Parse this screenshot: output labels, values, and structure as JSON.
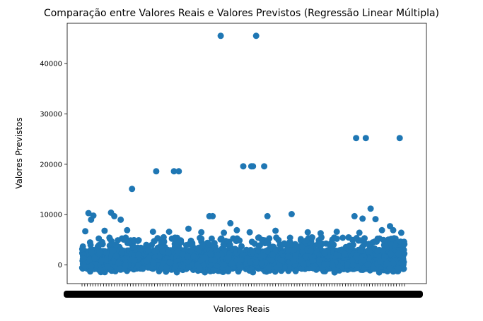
{
  "chart_data": {
    "type": "scatter",
    "title": "Comparação entre Valores Reais e Valores Previstos (Regressão Linear Múltipla)",
    "xlabel": "Valores Reais",
    "ylabel": "Valores Previstos",
    "ylim": [
      -3700,
      48000
    ],
    "y_ticks": [
      0,
      10000,
      20000,
      30000,
      40000
    ],
    "y_tick_labels": [
      "0",
      "10000",
      "20000",
      "30000",
      "40000"
    ],
    "grid": false,
    "legend": "none",
    "marker_color": "#1f77b4",
    "x_tick_note": "categorical x-axis with overlapping illegible tick labels",
    "x_range": [
      0,
      1
    ],
    "dense_band": {
      "y_min": -1500,
      "y_max": 5500
    },
    "points": [
      {
        "x": 0.43,
        "y": 45500
      },
      {
        "x": 0.54,
        "y": 45500
      },
      {
        "x": 0.85,
        "y": 25200
      },
      {
        "x": 0.88,
        "y": 25200
      },
      {
        "x": 0.985,
        "y": 25200
      },
      {
        "x": 0.23,
        "y": 18600
      },
      {
        "x": 0.285,
        "y": 18600
      },
      {
        "x": 0.3,
        "y": 18600
      },
      {
        "x": 0.5,
        "y": 19600
      },
      {
        "x": 0.525,
        "y": 19600
      },
      {
        "x": 0.53,
        "y": 19600
      },
      {
        "x": 0.565,
        "y": 19600
      },
      {
        "x": 0.155,
        "y": 15100
      },
      {
        "x": 0.02,
        "y": 10300
      },
      {
        "x": 0.035,
        "y": 9800
      },
      {
        "x": 0.028,
        "y": 9000
      },
      {
        "x": 0.09,
        "y": 10400
      },
      {
        "x": 0.1,
        "y": 9700
      },
      {
        "x": 0.12,
        "y": 9000
      },
      {
        "x": 0.395,
        "y": 9700
      },
      {
        "x": 0.405,
        "y": 9700
      },
      {
        "x": 0.46,
        "y": 8300
      },
      {
        "x": 0.575,
        "y": 9700
      },
      {
        "x": 0.65,
        "y": 10100
      },
      {
        "x": 0.845,
        "y": 9700
      },
      {
        "x": 0.895,
        "y": 11200
      },
      {
        "x": 0.87,
        "y": 9200
      },
      {
        "x": 0.91,
        "y": 9100
      },
      {
        "x": 0.955,
        "y": 7700
      },
      {
        "x": 0.965,
        "y": 6900
      },
      {
        "x": 0.01,
        "y": 6700
      },
      {
        "x": 0.07,
        "y": 6800
      },
      {
        "x": 0.14,
        "y": 6900
      },
      {
        "x": 0.22,
        "y": 6600
      },
      {
        "x": 0.27,
        "y": 6600
      },
      {
        "x": 0.33,
        "y": 7200
      },
      {
        "x": 0.37,
        "y": 6500
      },
      {
        "x": 0.44,
        "y": 6400
      },
      {
        "x": 0.48,
        "y": 6900
      },
      {
        "x": 0.52,
        "y": 6500
      },
      {
        "x": 0.6,
        "y": 6800
      },
      {
        "x": 0.7,
        "y": 6500
      },
      {
        "x": 0.74,
        "y": 6300
      },
      {
        "x": 0.79,
        "y": 6600
      },
      {
        "x": 0.86,
        "y": 6400
      },
      {
        "x": 0.93,
        "y": 6900
      },
      {
        "x": 0.99,
        "y": 6400
      }
    ]
  }
}
